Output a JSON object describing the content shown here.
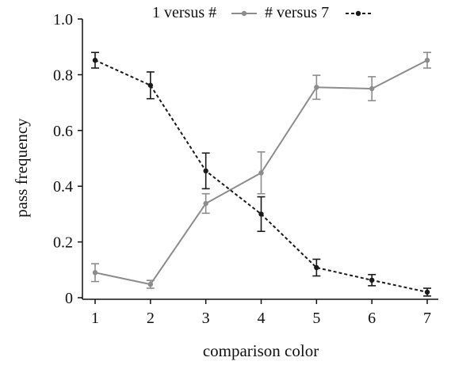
{
  "chart_data": {
    "type": "line",
    "xlabel": "comparison color",
    "ylabel": "pass frequency",
    "xlim": [
      1,
      7
    ],
    "ylim": [
      0,
      1.0
    ],
    "xticks": [
      1,
      2,
      3,
      4,
      5,
      6,
      7
    ],
    "xtick_labels": [
      "1",
      "2",
      "3",
      "4",
      "5",
      "6",
      "7"
    ],
    "yticks": [
      0,
      0.2,
      0.4,
      0.6,
      0.8,
      1.0
    ],
    "ytick_labels": [
      "0",
      "0.2",
      "0.4",
      "0.6",
      "0.8",
      "1.0"
    ],
    "grid": false,
    "legend_position": "top",
    "x": [
      1,
      2,
      3,
      4,
      5,
      6,
      7
    ],
    "series": [
      {
        "name": "1 versus #",
        "style": "solid",
        "color": "#8c8c8c",
        "values": [
          0.09,
          0.048,
          0.338,
          0.448,
          0.755,
          0.75,
          0.852
        ],
        "errors": [
          0.032,
          0.014,
          0.035,
          0.075,
          0.043,
          0.043,
          0.028
        ]
      },
      {
        "name": "# versus 7",
        "style": "dashed",
        "color": "#1a1a1a",
        "values": [
          0.852,
          0.762,
          0.455,
          0.3,
          0.108,
          0.063,
          0.02
        ],
        "errors": [
          0.028,
          0.048,
          0.064,
          0.062,
          0.03,
          0.02,
          0.014
        ]
      }
    ]
  }
}
